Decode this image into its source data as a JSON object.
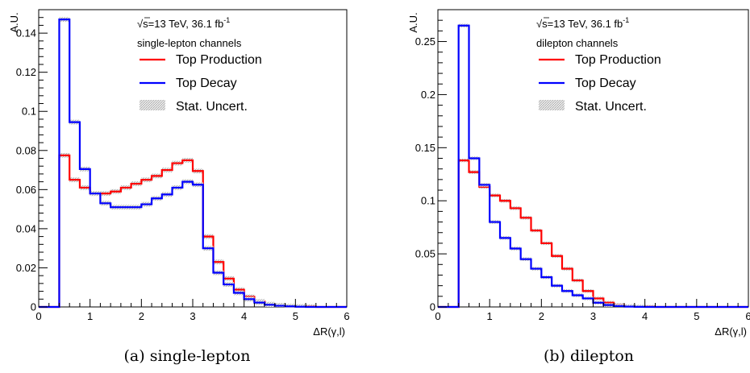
{
  "chart_data": [
    {
      "type": "line",
      "caption": "(a) single-lepton",
      "ylabel": "A.U.",
      "xlabel": "ΔR(γ,l)",
      "energy_text": "√s=13 TeV, 36.1 fb",
      "lumi_exp": "-1",
      "channel_text": "single-lepton channels",
      "xlim": [
        0,
        6
      ],
      "ylim": [
        0,
        0.152
      ],
      "xticks": [
        "0",
        "1",
        "2",
        "3",
        "4",
        "5",
        "6"
      ],
      "yticks": [
        0,
        0.02,
        0.04,
        0.06,
        0.08,
        0.1,
        0.12,
        0.14
      ],
      "ytick_labels": [
        "0",
        "0.02",
        "0.04",
        "0.06",
        "0.08",
        "0.1",
        "0.12",
        "0.14"
      ],
      "grid": false,
      "legend_position": "top-right",
      "legend": [
        "Top Production",
        "Top Decay",
        "Stat. Uncert."
      ],
      "bin_edges": [
        0.0,
        0.4,
        0.6,
        0.8,
        1.0,
        1.2,
        1.4,
        1.6,
        1.8,
        2.0,
        2.2,
        2.4,
        2.6,
        2.8,
        3.0,
        3.2,
        3.4,
        3.6,
        3.8,
        4.0,
        4.2,
        4.4,
        4.6,
        4.8,
        5.0,
        5.2,
        5.4,
        5.6,
        5.8,
        6.0
      ],
      "series": [
        {
          "name": "Top Production",
          "color": "#ff0000",
          "values": [
            0,
            0.0775,
            0.065,
            0.061,
            0.058,
            0.058,
            0.059,
            0.061,
            0.063,
            0.065,
            0.067,
            0.07,
            0.0735,
            0.075,
            0.0695,
            0.036,
            0.023,
            0.0145,
            0.0088,
            0.0052,
            0.0028,
            0.0014,
            0.0008,
            0.0004,
            0.0002,
            0.0001,
            0.0,
            0.0,
            0.0
          ]
        },
        {
          "name": "Top Decay",
          "color": "#0000ff",
          "values": [
            0,
            0.147,
            0.0945,
            0.0705,
            0.058,
            0.053,
            0.051,
            0.051,
            0.051,
            0.0525,
            0.0555,
            0.0575,
            0.061,
            0.064,
            0.0625,
            0.03,
            0.0175,
            0.0115,
            0.0072,
            0.004,
            0.0022,
            0.0011,
            0.0006,
            0.0003,
            0.0001,
            0.0,
            0.0,
            0.0,
            0.0
          ]
        }
      ]
    },
    {
      "type": "line",
      "caption": "(b) dilepton",
      "ylabel": "A.U.",
      "xlabel": "ΔR(γ,l)",
      "energy_text": "√s=13 TeV, 36.1 fb",
      "lumi_exp": "-1",
      "channel_text": "dilepton channels",
      "xlim": [
        0,
        6
      ],
      "ylim": [
        0,
        0.28
      ],
      "xticks": [
        "0",
        "1",
        "2",
        "3",
        "4",
        "5",
        "6"
      ],
      "yticks": [
        0,
        0.05,
        0.1,
        0.15,
        0.2,
        0.25
      ],
      "ytick_labels": [
        "0",
        "0.05",
        "0.1",
        "0.15",
        "0.2",
        "0.25"
      ],
      "grid": false,
      "legend_position": "top-right",
      "legend": [
        "Top Production",
        "Top Decay",
        "Stat. Uncert."
      ],
      "bin_edges": [
        0.0,
        0.4,
        0.6,
        0.8,
        1.0,
        1.2,
        1.4,
        1.6,
        1.8,
        2.0,
        2.2,
        2.4,
        2.6,
        2.8,
        3.0,
        3.2,
        3.4,
        3.6,
        3.8,
        4.0,
        4.2,
        4.4,
        4.6,
        4.8,
        5.0,
        5.2,
        5.4,
        5.6,
        5.8,
        6.0
      ],
      "series": [
        {
          "name": "Top Production",
          "color": "#ff0000",
          "values": [
            0,
            0.138,
            0.127,
            0.113,
            0.105,
            0.1,
            0.093,
            0.084,
            0.072,
            0.06,
            0.048,
            0.036,
            0.025,
            0.015,
            0.008,
            0.004,
            0.0018,
            0.0008,
            0.0003,
            0.0001,
            0.0,
            0.0,
            0.0,
            0.0,
            0.0,
            0.0,
            0.0,
            0.0,
            0.0
          ]
        },
        {
          "name": "Top Decay",
          "color": "#0000ff",
          "values": [
            0,
            0.265,
            0.14,
            0.115,
            0.08,
            0.065,
            0.055,
            0.045,
            0.036,
            0.028,
            0.02,
            0.015,
            0.011,
            0.008,
            0.004,
            0.0018,
            0.0008,
            0.0003,
            0.0001,
            0.0,
            0.0,
            0.0,
            0.0,
            0.0,
            0.0,
            0.0,
            0.0,
            0.0,
            0.0
          ]
        }
      ]
    }
  ]
}
